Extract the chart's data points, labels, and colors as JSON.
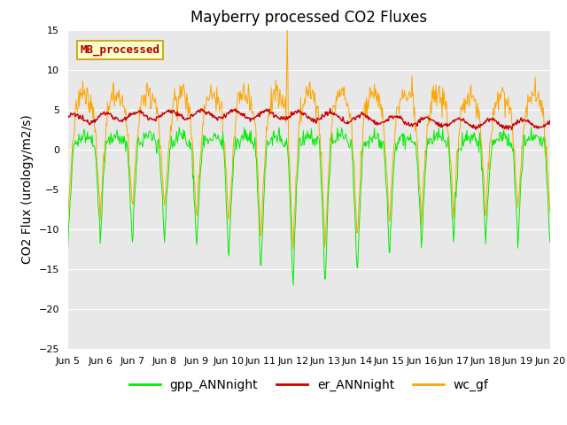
{
  "title": "Mayberry processed CO2 Fluxes",
  "ylabel": "CO2 Flux (urology/m2/s)",
  "xlim_start": 5.0,
  "xlim_end": 20.0,
  "ylim": [
    -25,
    15
  ],
  "yticks": [
    -25,
    -20,
    -15,
    -10,
    -5,
    0,
    5,
    10,
    15
  ],
  "xtick_labels": [
    "Jun 5",
    "Jun 6",
    "Jun 7",
    "Jun 8",
    "Jun 9",
    "Jun 10",
    "Jun 11",
    "Jun 12",
    "Jun 13",
    "Jun 14",
    "Jun 15",
    "Jun 16",
    "Jun 17",
    "Jun 18",
    "Jun 19",
    "Jun 20"
  ],
  "xtick_positions": [
    5,
    6,
    7,
    8,
    9,
    10,
    11,
    12,
    13,
    14,
    15,
    16,
    17,
    18,
    19,
    20
  ],
  "legend_label": "MB_processed",
  "legend_text_color": "#aa0000",
  "legend_box_bg": "#ffffcc",
  "series": {
    "gpp_ANNnight": {
      "color": "#00ee00",
      "label": "gpp_ANNnight"
    },
    "er_ANNnight": {
      "color": "#cc0000",
      "label": "er_ANNnight"
    },
    "wc_gf": {
      "color": "#ffa500",
      "label": "wc_gf"
    }
  },
  "bg_color": "#e8e8e8",
  "grid_color": "#ffffff",
  "title_fontsize": 12,
  "axis_fontsize": 10,
  "tick_fontsize": 8,
  "legend_fontsize": 10
}
